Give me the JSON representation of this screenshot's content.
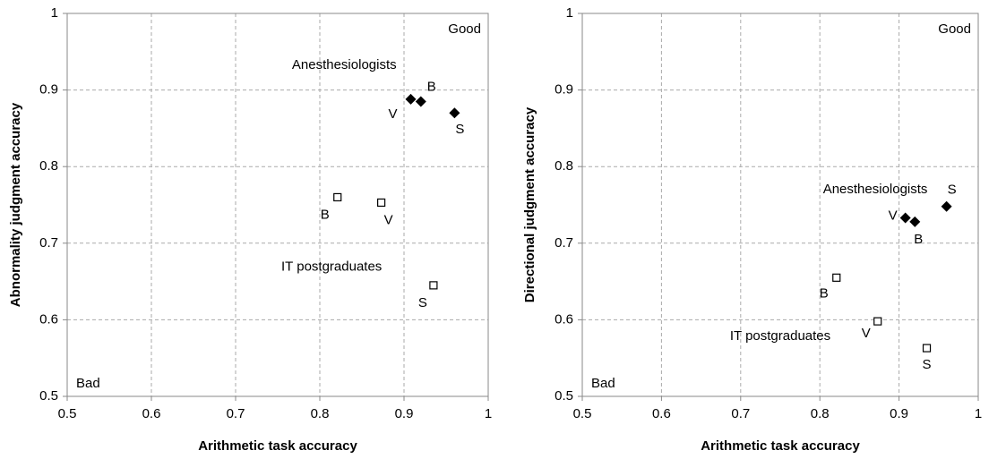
{
  "chart_data": [
    {
      "type": "scatter",
      "xlabel": "Arithmetic task accuracy",
      "ylabel": "Abnormality judgment accuracy",
      "xlim": [
        0.5,
        1
      ],
      "ylim": [
        0.5,
        1
      ],
      "xticks": [
        0.5,
        0.6,
        0.7,
        0.8,
        0.9,
        1
      ],
      "yticks": [
        0.5,
        0.6,
        0.7,
        0.8,
        0.9,
        1
      ],
      "grid": true,
      "annotations": [
        "Good",
        "Bad"
      ],
      "series": [
        {
          "name": "Anesthesiologists",
          "color": "#000000",
          "marker": "diamond",
          "x": [
            0.908,
            0.92,
            0.96
          ],
          "values": [
            0.888,
            0.885,
            0.87
          ],
          "labels": [
            "V",
            "B",
            "S"
          ]
        },
        {
          "name": "IT postgraduates",
          "color": "#000000",
          "marker": "square",
          "x": [
            0.821,
            0.873,
            0.935
          ],
          "values": [
            0.76,
            0.753,
            0.645
          ],
          "labels": [
            "B",
            "V",
            "S"
          ]
        }
      ]
    },
    {
      "type": "scatter",
      "xlabel": "Arithmetic task accuracy",
      "ylabel": "Directional judgment accuracy",
      "xlim": [
        0.5,
        1
      ],
      "ylim": [
        0.5,
        1
      ],
      "xticks": [
        0.5,
        0.6,
        0.7,
        0.8,
        0.9,
        1
      ],
      "yticks": [
        0.5,
        0.6,
        0.7,
        0.8,
        0.9,
        1
      ],
      "grid": true,
      "annotations": [
        "Good",
        "Bad"
      ],
      "series": [
        {
          "name": "Anesthesiologists",
          "color": "#000000",
          "marker": "diamond",
          "x": [
            0.908,
            0.92,
            0.96
          ],
          "values": [
            0.733,
            0.728,
            0.748
          ],
          "labels": [
            "V",
            "B",
            "S"
          ]
        },
        {
          "name": "IT postgraduates",
          "color": "#000000",
          "marker": "square",
          "x": [
            0.821,
            0.873,
            0.935
          ],
          "values": [
            0.655,
            0.598,
            0.563
          ],
          "labels": [
            "B",
            "V",
            "S"
          ]
        }
      ]
    }
  ]
}
